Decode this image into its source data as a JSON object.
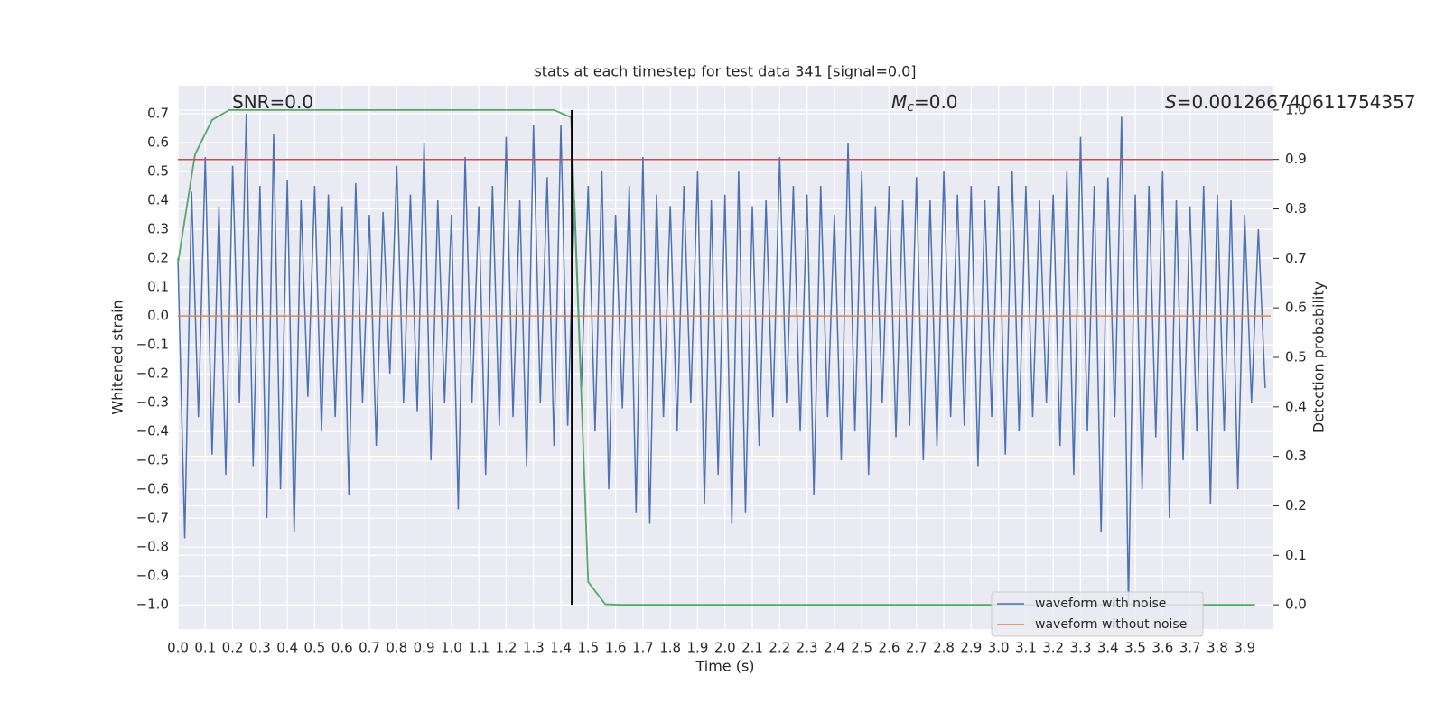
{
  "chart_data": {
    "type": "line",
    "title": "stats at each timestep for test data 341 [signal=0.0]",
    "xlabel": "Time (s)",
    "ylabel": "Whitened strain",
    "y2label": "Detection probability",
    "annotations": [
      {
        "text": "SNR=0.0"
      },
      {
        "symbol": "M",
        "subscript": "c",
        "text": "=0.0"
      },
      {
        "symbol": "S",
        "text": "=0.001266740611754357"
      }
    ],
    "xlim": [
      0,
      4.005
    ],
    "ylim": [
      -1.084,
      0.797
    ],
    "y2lim": [
      -0.049,
      1.049
    ],
    "xticks": [
      {
        "value": 0,
        "label": "0.0"
      },
      0.1,
      0.2,
      0.3,
      0.4,
      0.5,
      0.6,
      0.7,
      0.8,
      0.9,
      {
        "value": 1,
        "label": "1.0"
      },
      1.1,
      1.2,
      1.3,
      1.4,
      1.5,
      1.6,
      1.7,
      1.8,
      1.9,
      {
        "value": 2,
        "label": "2.0"
      },
      2.1,
      2.2,
      2.3,
      2.4,
      2.5,
      2.6,
      2.7,
      2.8,
      2.9,
      {
        "value": 3,
        "label": "3.0"
      },
      3.1,
      3.2,
      3.3,
      3.4,
      3.5,
      3.6,
      3.7,
      3.8,
      3.9
    ],
    "yticks": [
      {
        "value": -1,
        "label": "−1.0"
      },
      {
        "value": -0.9,
        "label": "−0.9"
      },
      {
        "value": -0.8,
        "label": "−0.8"
      },
      {
        "value": -0.7,
        "label": "−0.7"
      },
      {
        "value": -0.6,
        "label": "−0.6"
      },
      {
        "value": -0.5,
        "label": "−0.5"
      },
      {
        "value": -0.4,
        "label": "−0.4"
      },
      {
        "value": -0.3,
        "label": "−0.3"
      },
      {
        "value": -0.2,
        "label": "−0.2"
      },
      {
        "value": -0.1,
        "label": "−0.1"
      },
      {
        "value": 0,
        "label": "0.0"
      },
      0.1,
      0.2,
      0.3,
      0.4,
      0.5,
      0.6,
      0.7
    ],
    "y2ticks": [
      {
        "value": 0,
        "label": "0.0"
      },
      0.1,
      0.2,
      0.3,
      0.4,
      0.5,
      0.6,
      0.7,
      0.8,
      0.9,
      {
        "value": 1,
        "label": "1.0"
      }
    ],
    "grid": true,
    "legend": "lower right",
    "series": [
      {
        "name": "waveform with noise",
        "color": "#4c72b0",
        "x": [
          0,
          0.025,
          0.05,
          0.075,
          0.1,
          0.125,
          0.15,
          0.175,
          0.2,
          0.225,
          0.25,
          0.275,
          0.3,
          0.325,
          0.35,
          0.375,
          0.4,
          0.425,
          0.45,
          0.475,
          0.5,
          0.525,
          0.55,
          0.575,
          0.6,
          0.625,
          0.65,
          0.675,
          0.7,
          0.725,
          0.75,
          0.775,
          0.8,
          0.825,
          0.85,
          0.875,
          0.9,
          0.925,
          0.95,
          0.975,
          1,
          1.025,
          1.05,
          1.075,
          1.1,
          1.125,
          1.15,
          1.175,
          1.2,
          1.225,
          1.25,
          1.275,
          1.3,
          1.325,
          1.35,
          1.375,
          1.4,
          1.425,
          1.45,
          1.475,
          1.5,
          1.525,
          1.55,
          1.575,
          1.6,
          1.625,
          1.65,
          1.675,
          1.7,
          1.725,
          1.75,
          1.775,
          1.8,
          1.825,
          1.85,
          1.875,
          1.9,
          1.925,
          1.95,
          1.975,
          2,
          2.025,
          2.05,
          2.075,
          2.1,
          2.125,
          2.15,
          2.175,
          2.2,
          2.225,
          2.25,
          2.275,
          2.3,
          2.325,
          2.35,
          2.375,
          2.4,
          2.425,
          2.45,
          2.475,
          2.5,
          2.525,
          2.55,
          2.575,
          2.6,
          2.625,
          2.65,
          2.675,
          2.7,
          2.725,
          2.75,
          2.775,
          2.8,
          2.825,
          2.85,
          2.875,
          2.9,
          2.925,
          2.95,
          2.975,
          3,
          3.025,
          3.05,
          3.075,
          3.1,
          3.125,
          3.15,
          3.175,
          3.2,
          3.225,
          3.25,
          3.275,
          3.3,
          3.325,
          3.35,
          3.375,
          3.4,
          3.425,
          3.45,
          3.475,
          3.5,
          3.525,
          3.55,
          3.575,
          3.6,
          3.625,
          3.65,
          3.675,
          3.7,
          3.725,
          3.75,
          3.775,
          3.8,
          3.825,
          3.85,
          3.875,
          3.9,
          3.925,
          3.95,
          3.975
        ],
        "values": [
          0.2,
          -0.77,
          0.43,
          -0.35,
          0.55,
          -0.48,
          0.38,
          -0.55,
          0.52,
          -0.3,
          0.7,
          -0.52,
          0.45,
          -0.7,
          0.63,
          -0.6,
          0.47,
          -0.75,
          0.4,
          -0.28,
          0.45,
          -0.4,
          0.42,
          -0.35,
          0.38,
          -0.62,
          0.46,
          -0.3,
          0.35,
          -0.45,
          0.36,
          -0.2,
          0.52,
          -0.3,
          0.42,
          -0.33,
          0.6,
          -0.5,
          0.4,
          -0.3,
          0.35,
          -0.67,
          0.55,
          -0.3,
          0.38,
          -0.55,
          0.45,
          -0.38,
          0.62,
          -0.35,
          0.4,
          -0.52,
          0.66,
          -0.3,
          0.48,
          -0.45,
          0.66,
          -0.38,
          0.4,
          -0.25,
          0.45,
          -0.4,
          0.5,
          -0.6,
          0.35,
          -0.32,
          0.45,
          -0.68,
          0.55,
          -0.72,
          0.42,
          -0.35,
          0.38,
          -0.4,
          0.45,
          -0.3,
          0.5,
          -0.65,
          0.4,
          -0.55,
          0.42,
          -0.72,
          0.5,
          -0.68,
          0.38,
          -0.45,
          0.4,
          -0.35,
          0.55,
          -0.3,
          0.45,
          -0.4,
          0.42,
          -0.62,
          0.45,
          -0.35,
          0.35,
          -0.5,
          0.6,
          -0.4,
          0.5,
          -0.55,
          0.38,
          -0.3,
          0.45,
          -0.42,
          0.4,
          -0.38,
          0.48,
          -0.5,
          0.4,
          -0.45,
          0.5,
          -0.35,
          0.42,
          -0.38,
          0.45,
          -0.52,
          0.4,
          -0.35,
          0.45,
          -0.48,
          0.5,
          -0.4,
          0.45,
          -0.35,
          0.4,
          -0.3,
          0.42,
          -0.45,
          0.5,
          -0.55,
          0.62,
          -0.4,
          0.45,
          -0.75,
          0.48,
          -0.35,
          0.69,
          -1.0,
          0.42,
          -0.6,
          0.45,
          -0.42,
          0.5,
          -0.7,
          0.4,
          -0.5,
          0.38,
          -0.4,
          0.45,
          -0.65,
          0.42,
          -0.4,
          0.4,
          -0.6,
          0.35,
          -0.3,
          0.3,
          -0.25
        ]
      },
      {
        "name": "waveform without noise",
        "color": "#dd8452",
        "x": [
          0,
          3.995
        ],
        "values": [
          0,
          0
        ]
      }
    ],
    "probability": {
      "color": "#55a868",
      "axis": "y2",
      "x": [
        0,
        0.0625,
        0.125,
        0.1875,
        0.25,
        0.3125,
        0.375,
        0.4375,
        0.5,
        0.5625,
        0.625,
        0.6875,
        0.75,
        0.8125,
        0.875,
        0.9375,
        1,
        1.0625,
        1.125,
        1.1875,
        1.25,
        1.3125,
        1.375,
        1.4375,
        1.5,
        1.5625,
        1.625,
        1.6875,
        1.75,
        1.8125,
        1.875,
        1.9375,
        2,
        2.0625,
        2.125,
        2.1875,
        2.25,
        2.3125,
        2.375,
        2.4375,
        2.5,
        2.5625,
        2.625,
        2.6875,
        2.75,
        2.8125,
        2.875,
        2.9375,
        3,
        3.0625,
        3.125,
        3.1875,
        3.25,
        3.3125,
        3.375,
        3.4375,
        3.5,
        3.5625,
        3.625,
        3.6875,
        3.75,
        3.8125,
        3.875,
        3.9375
      ],
      "values": [
        0.69,
        0.91,
        0.98,
        1,
        1,
        1,
        1,
        1,
        1,
        1,
        1,
        1,
        1,
        1,
        1,
        1,
        1,
        1,
        1,
        1,
        1,
        1,
        1,
        0.985,
        0.046,
        0.001,
        0,
        0,
        0,
        0,
        0,
        0,
        0,
        0,
        0,
        0,
        0,
        0,
        0,
        0,
        0,
        0,
        0,
        0,
        0,
        0,
        0,
        0,
        0,
        0,
        0,
        0,
        0,
        0,
        0,
        0,
        0,
        0,
        0,
        0,
        0,
        0,
        0,
        0
      ]
    },
    "hlines": [
      {
        "value": 0.9,
        "axis": "y2",
        "color": "#c44e52"
      }
    ],
    "vlines": [
      {
        "x": 1.44,
        "y2range": [
          0,
          1
        ],
        "color": "#000000"
      }
    ]
  }
}
